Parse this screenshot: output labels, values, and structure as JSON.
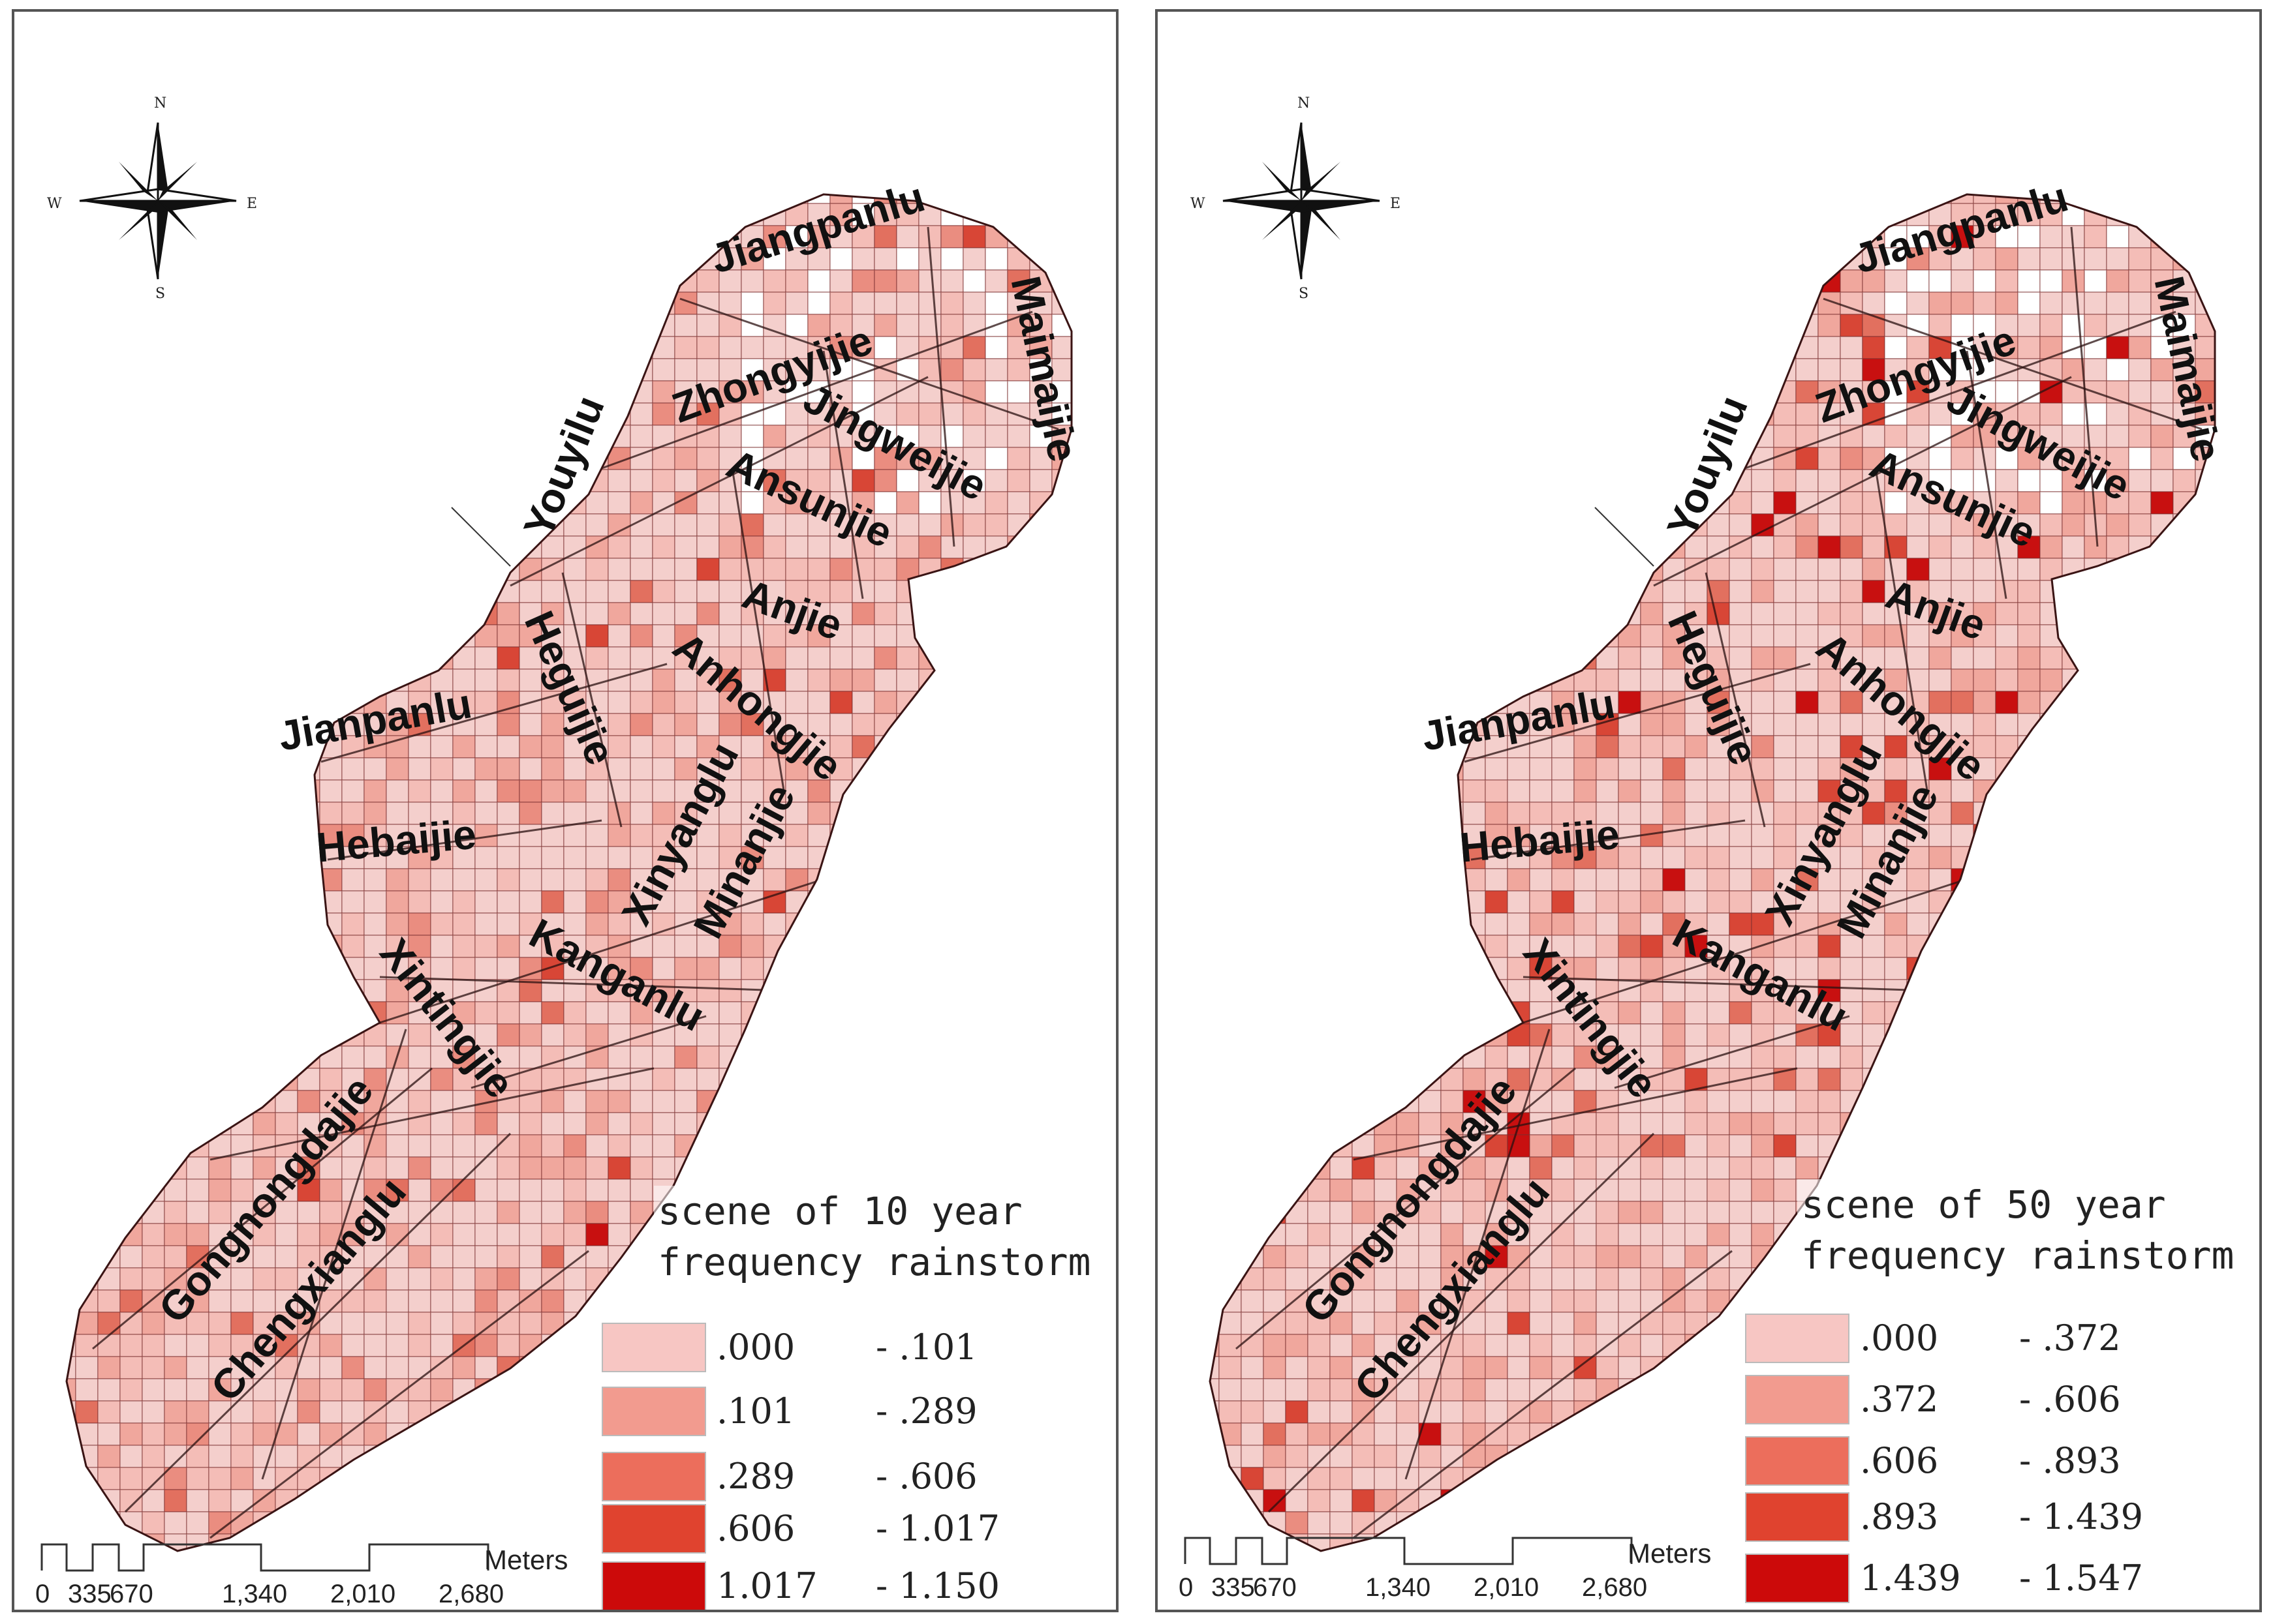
{
  "panels": [
    {
      "id": "left",
      "legend_title_line1": "scene of 10 year",
      "legend_title_line2": "frequency rainstorm",
      "legend": [
        {
          "low": ".000",
          "high": "- .101",
          "color": "#f7c6c3"
        },
        {
          "low": ".101",
          "high": "- .289",
          "color": "#f29b8f"
        },
        {
          "low": ".289",
          "high": "- .606",
          "color": "#ec6e5c"
        },
        {
          "low": ".606",
          "high": "- 1.017",
          "color": "#e0432f"
        },
        {
          "low": "1.017",
          "high": "- 1.150",
          "color": "#cc0a0a"
        }
      ]
    },
    {
      "id": "right",
      "legend_title_line1": "scene of 50 year",
      "legend_title_line2": "frequency rainstorm",
      "legend": [
        {
          "low": ".000",
          "high": "- .372",
          "color": "#f7c6c3"
        },
        {
          "low": ".372",
          "high": "- .606",
          "color": "#f29b8f"
        },
        {
          "low": ".606",
          "high": "- .893",
          "color": "#ec6e5c"
        },
        {
          "low": ".893",
          "high": "- 1.439",
          "color": "#e0432f"
        },
        {
          "low": "1.439",
          "high": "- 1.547",
          "color": "#cc0a0a"
        }
      ]
    }
  ],
  "streets": [
    "Jiangpanlu",
    "Zhongyijie",
    "Maimaijie",
    "Youyilu",
    "Jingweijie",
    "Ansunjie",
    "Anjie",
    "Heguijie",
    "Anhongjie",
    "Jianpanlu",
    "Xinyanglu",
    "Minanjie",
    "Hebaijie",
    "Kanganlu",
    "Xintingjie",
    "Gongnongdajie",
    "Chengxianglu"
  ],
  "compass": {
    "n": "N",
    "s": "S",
    "e": "E",
    "w": "W"
  },
  "scale": {
    "ticks": [
      "0",
      "335",
      "670",
      "1,340",
      "2,010",
      "2,680"
    ],
    "unit": "Meters"
  },
  "colors": {
    "base": "#f4cfcc",
    "block_stroke": "#7a3030",
    "road": "#2a1010"
  }
}
